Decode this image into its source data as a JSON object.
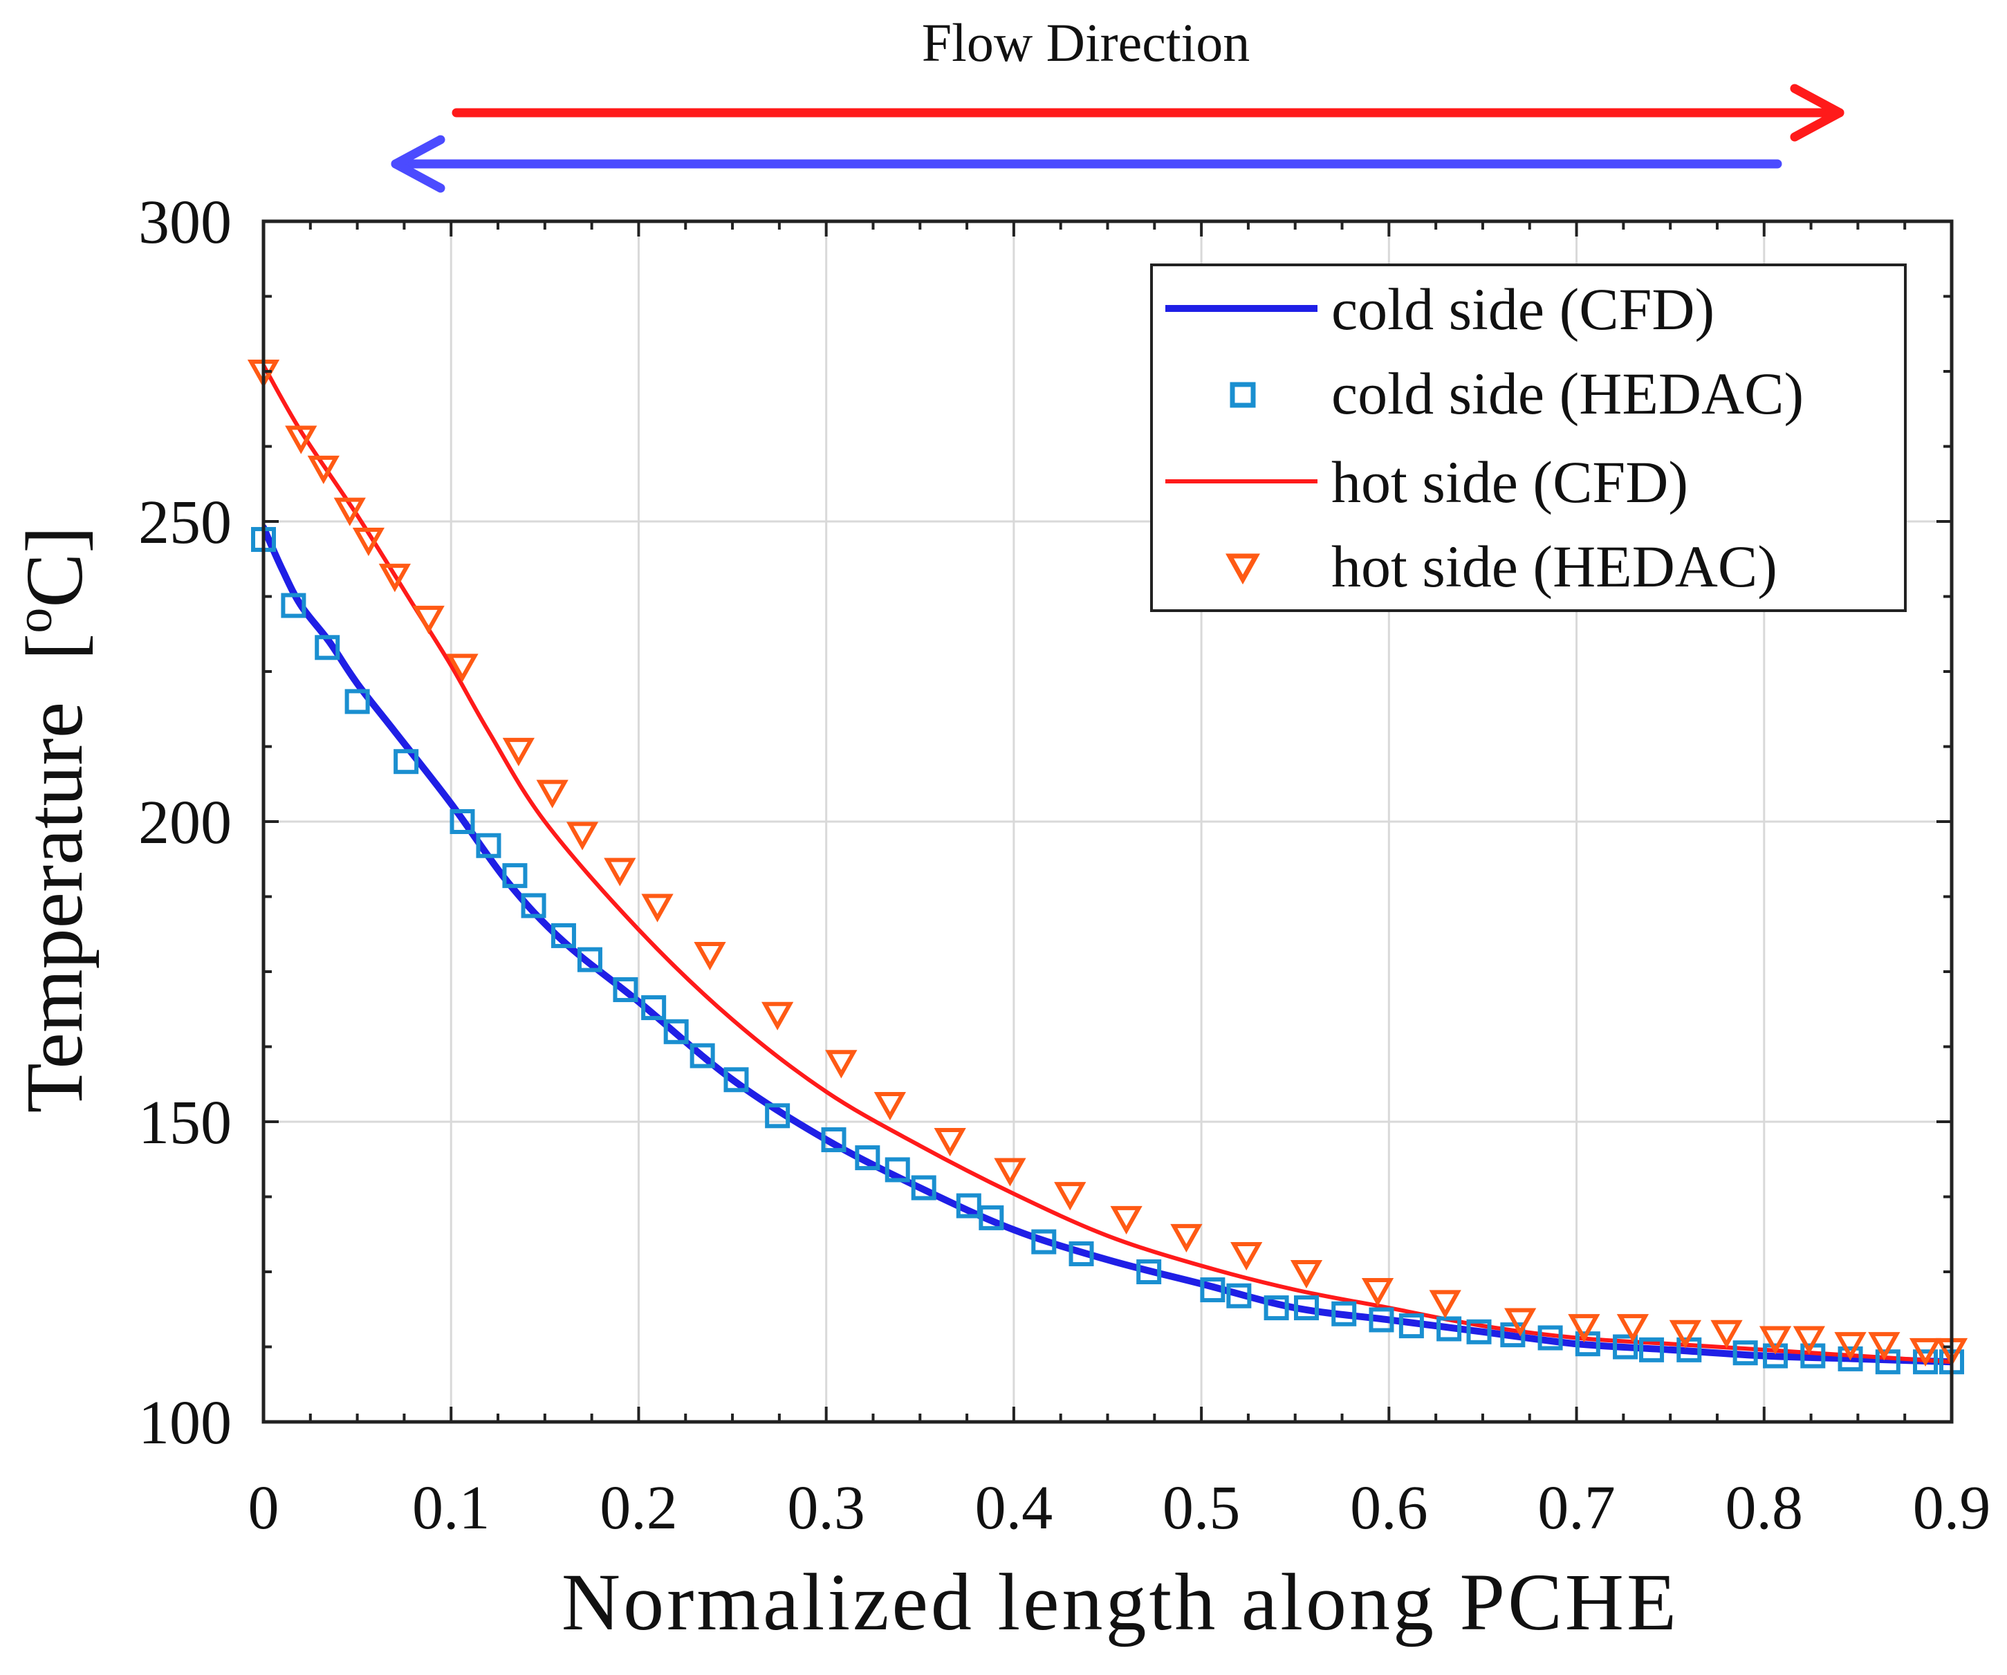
{
  "chart_data": {
    "type": "line",
    "title": "",
    "annotation": "Flow Direction",
    "flow_arrows": [
      {
        "name": "hot-flow",
        "direction": "right",
        "color": "#ff1a1a"
      },
      {
        "name": "cold-flow",
        "direction": "left",
        "color": "#4b4bff"
      }
    ],
    "xlabel": "Normalized length along PCHE",
    "ylabel": "Temperature",
    "ylabel_unit_prefix": "[",
    "ylabel_unit_sup": "o",
    "ylabel_unit_main": "C]",
    "xlim": [
      0,
      0.9
    ],
    "ylim": [
      100,
      300
    ],
    "xticks": [
      0,
      0.1,
      0.2,
      0.3,
      0.4,
      0.5,
      0.6,
      0.7,
      0.8,
      0.9
    ],
    "xtick_labels": [
      "0",
      "0.1",
      "0.2",
      "0.3",
      "0.4",
      "0.5",
      "0.6",
      "0.7",
      "0.8",
      "0.9"
    ],
    "yticks": [
      100,
      150,
      200,
      250,
      300
    ],
    "ytick_labels": [
      "100",
      "150",
      "200",
      "250",
      "300"
    ],
    "grid": true,
    "legend_position": "top-right",
    "series": [
      {
        "name": "cold side (CFD)",
        "kind": "line",
        "color": "#1f1fe6",
        "line_weight": "thick",
        "x": [
          0,
          0.01,
          0.02,
          0.035,
          0.05,
          0.07,
          0.1,
          0.13,
          0.16,
          0.2,
          0.25,
          0.3,
          0.35,
          0.4,
          0.45,
          0.5,
          0.55,
          0.6,
          0.65,
          0.7,
          0.75,
          0.8,
          0.85,
          0.9
        ],
        "y": [
          249,
          242,
          236,
          230,
          223,
          215,
          203,
          190,
          180,
          170,
          157,
          147,
          139,
          132,
          127,
          123,
          119,
          117,
          115,
          113,
          112,
          111,
          110.5,
          110
        ]
      },
      {
        "name": "cold side (HEDAC)",
        "kind": "marker",
        "marker": "square",
        "color": "#1a8fd0",
        "x": [
          0,
          0.016,
          0.034,
          0.05,
          0.076,
          0.106,
          0.12,
          0.134,
          0.144,
          0.16,
          0.174,
          0.193,
          0.208,
          0.22,
          0.234,
          0.252,
          0.274,
          0.304,
          0.322,
          0.338,
          0.352,
          0.376,
          0.388,
          0.416,
          0.436,
          0.472,
          0.506,
          0.52,
          0.54,
          0.556,
          0.576,
          0.596,
          0.612,
          0.632,
          0.648,
          0.666,
          0.686,
          0.706,
          0.726,
          0.74,
          0.76,
          0.79,
          0.806,
          0.826,
          0.846,
          0.866,
          0.886,
          0.9
        ],
        "y": [
          247,
          236,
          229,
          220,
          210,
          200,
          196,
          191,
          186,
          181,
          177,
          172,
          169,
          165,
          161,
          157,
          151,
          147,
          144,
          142,
          139,
          136,
          134,
          130,
          128,
          125,
          122,
          121,
          119,
          119,
          118,
          117,
          116,
          115.5,
          115,
          114.5,
          114,
          113,
          112.5,
          112,
          112,
          111.5,
          111,
          111,
          110.5,
          110,
          110,
          110
        ]
      },
      {
        "name": "hot side (CFD)",
        "kind": "line",
        "color": "#ff1a1a",
        "line_weight": "thin",
        "x": [
          0,
          0.02,
          0.05,
          0.08,
          0.1,
          0.12,
          0.15,
          0.2,
          0.25,
          0.3,
          0.35,
          0.4,
          0.45,
          0.5,
          0.55,
          0.6,
          0.65,
          0.7,
          0.75,
          0.8,
          0.85,
          0.9
        ],
        "y": [
          276,
          265,
          251,
          236,
          226,
          215,
          200,
          182,
          167,
          155,
          146,
          138,
          131,
          126,
          122,
          119,
          116,
          114,
          113,
          112,
          111,
          110
        ]
      },
      {
        "name": "hot side (HEDAC)",
        "kind": "marker",
        "marker": "triangle-down",
        "color": "#ff5a14",
        "x": [
          0,
          0.02,
          0.032,
          0.046,
          0.056,
          0.07,
          0.088,
          0.106,
          0.136,
          0.154,
          0.17,
          0.19,
          0.21,
          0.238,
          0.274,
          0.308,
          0.334,
          0.366,
          0.398,
          0.43,
          0.46,
          0.492,
          0.524,
          0.556,
          0.594,
          0.63,
          0.67,
          0.704,
          0.73,
          0.758,
          0.78,
          0.806,
          0.824,
          0.846,
          0.864,
          0.886,
          0.9
        ],
        "y": [
          275,
          264,
          259,
          252,
          247,
          241,
          234,
          226,
          212,
          205,
          198,
          192,
          186,
          178,
          168,
          160,
          153,
          147,
          142,
          138,
          134,
          131,
          128,
          125,
          122,
          120,
          117,
          116,
          116,
          115,
          115,
          114,
          114,
          113,
          113,
          112,
          112
        ]
      }
    ]
  }
}
